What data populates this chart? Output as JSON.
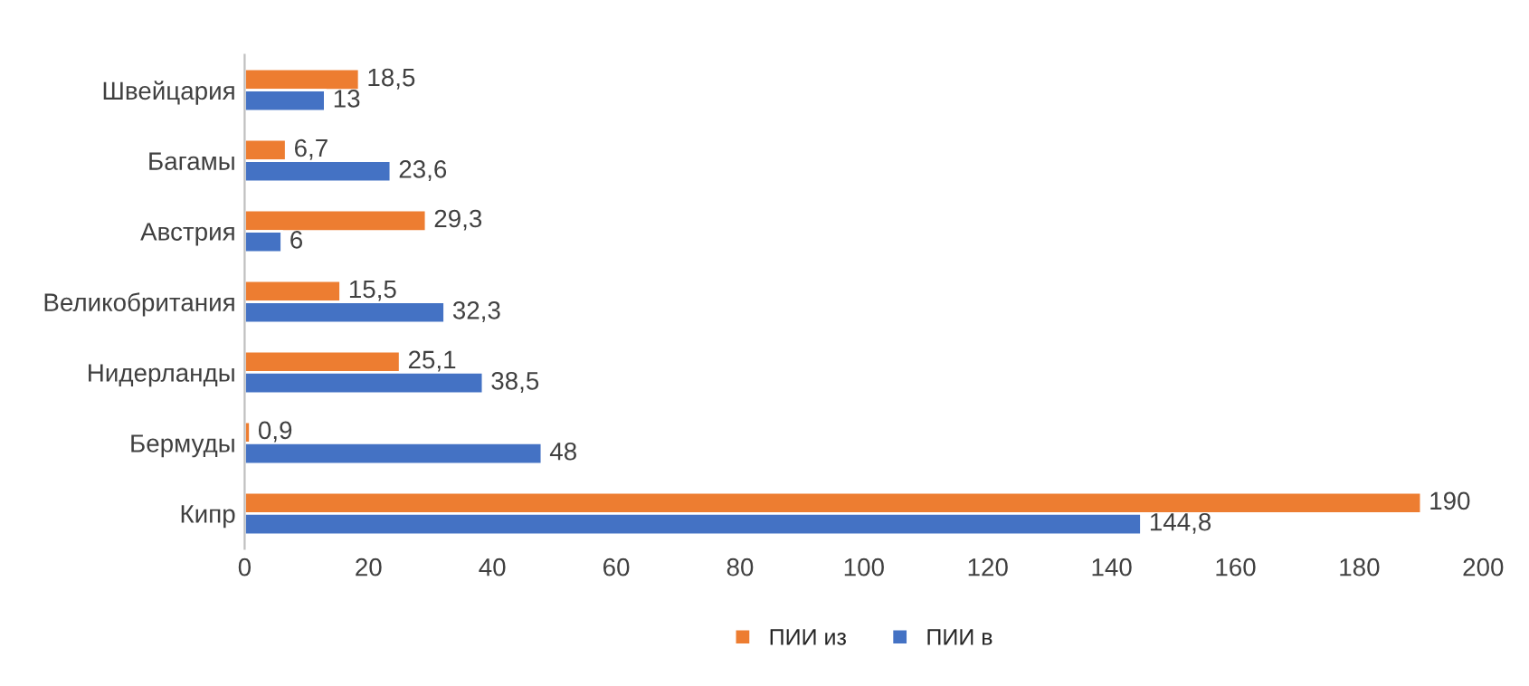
{
  "chart_data": {
    "type": "bar",
    "orientation": "horizontal",
    "categories": [
      "Швейцария",
      "Багамы",
      "Австрия",
      "Великобритания",
      "Нидерланды",
      "Бермуды",
      "Кипр"
    ],
    "series": [
      {
        "name": "ПИИ из",
        "color": "#ed7d31",
        "values": [
          18.5,
          6.7,
          29.3,
          15.5,
          25.1,
          0.9,
          190
        ],
        "value_labels": [
          "18,5",
          "6,7",
          "29,3",
          "15,5",
          "25,1",
          "0,9",
          "190"
        ]
      },
      {
        "name": "ПИИ в",
        "color": "#4472c4",
        "values": [
          13,
          23.6,
          6,
          32.3,
          38.5,
          48,
          144.8
        ],
        "value_labels": [
          "13",
          "23,6",
          "6",
          "32,3",
          "38,5",
          "48",
          "144,8"
        ]
      }
    ],
    "xlim": [
      0,
      200
    ],
    "xticks": [
      0,
      20,
      40,
      60,
      80,
      100,
      120,
      140,
      160,
      180,
      200
    ],
    "legend": "bottom"
  }
}
